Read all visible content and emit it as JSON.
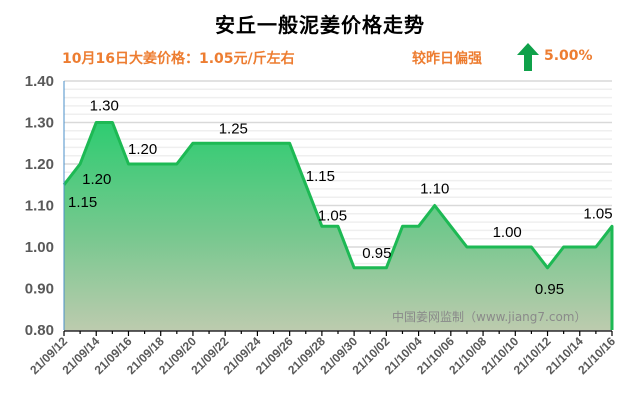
{
  "header": {
    "title": "安丘一般泥姜价格走势",
    "price_note": "10月16日大姜价格：1.05元/斤左右",
    "compare_text": "较昨日偏强",
    "change_icon": "up-arrow-icon",
    "change_pct": "5.00%"
  },
  "colors": {
    "accent_orange": "#ED7D31",
    "line_green": "#1DB954",
    "arrow_green": "#0FA14A",
    "area_top": "#2ECC71",
    "area_bottom": "#BCCBAE"
  },
  "watermark": "中国姜网监制（www.jiang7.com）",
  "chart_data": {
    "type": "area",
    "title": "安丘一般泥姜价格走势",
    "xlabel": "",
    "ylabel": "",
    "ylim": [
      0.8,
      1.4
    ],
    "yticks": [
      "1.40",
      "1.30",
      "1.20",
      "1.10",
      "1.00",
      "0.90",
      "0.80"
    ],
    "grid": true,
    "legend": null,
    "x": [
      "21/09/12",
      "21/09/13",
      "21/09/14",
      "21/09/15",
      "21/09/16",
      "21/09/17",
      "21/09/18",
      "21/09/19",
      "21/09/20",
      "21/09/21",
      "21/09/22",
      "21/09/23",
      "21/09/24",
      "21/09/25",
      "21/09/26",
      "21/09/27",
      "21/09/28",
      "21/09/29",
      "21/09/30",
      "21/10/01",
      "21/10/02",
      "21/10/03",
      "21/10/04",
      "21/10/05",
      "21/10/06",
      "21/10/07",
      "21/10/08",
      "21/10/09",
      "21/10/10",
      "21/10/11",
      "21/10/12",
      "21/10/13",
      "21/10/14",
      "21/10/15",
      "21/10/16"
    ],
    "xtick_labels": [
      "21/09/12",
      "21/09/14",
      "21/09/16",
      "21/09/18",
      "21/09/20",
      "21/09/22",
      "21/09/24",
      "21/09/26",
      "21/09/28",
      "21/09/30",
      "21/10/02",
      "21/10/04",
      "21/10/06",
      "21/10/08",
      "21/10/10",
      "21/10/12",
      "21/10/14",
      "21/10/16"
    ],
    "values": [
      1.15,
      1.2,
      1.3,
      1.3,
      1.2,
      1.2,
      1.2,
      1.2,
      1.25,
      1.25,
      1.25,
      1.25,
      1.25,
      1.25,
      1.25,
      1.15,
      1.05,
      1.05,
      0.95,
      0.95,
      0.95,
      1.05,
      1.05,
      1.1,
      1.05,
      1.0,
      1.0,
      1.0,
      1.0,
      1.0,
      0.95,
      1.0,
      1.0,
      1.0,
      1.05
    ],
    "annotations": [
      {
        "x": "21/09/12",
        "text": "1.15"
      },
      {
        "x": "21/09/13",
        "text": "1.20"
      },
      {
        "x": "21/09/14",
        "text": "1.30"
      },
      {
        "x": "21/09/17",
        "text": "1.20"
      },
      {
        "x": "21/09/23",
        "text": "1.25"
      },
      {
        "x": "21/09/27",
        "text": "1.15"
      },
      {
        "x": "21/09/28",
        "text": "1.05"
      },
      {
        "x": "21/10/01",
        "text": "0.95"
      },
      {
        "x": "21/10/05",
        "text": "1.10"
      },
      {
        "x": "21/10/09",
        "text": "1.00"
      },
      {
        "x": "21/10/12",
        "text": "0.95"
      },
      {
        "x": "21/10/16",
        "text": "1.05"
      }
    ]
  }
}
